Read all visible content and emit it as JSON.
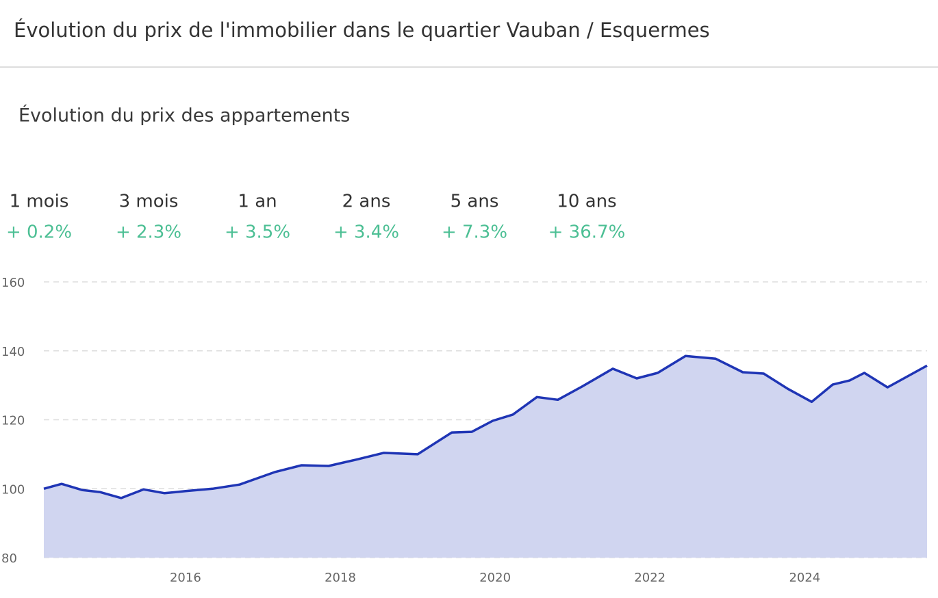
{
  "header": {
    "title": "Évolution du prix de l'immobilier dans le quartier Vauban / Esquermes"
  },
  "subtitle": "Évolution du prix des appartements",
  "stats": [
    {
      "label": "1 mois",
      "value": "+ 0.2%"
    },
    {
      "label": "3 mois",
      "value": "+ 2.3%"
    },
    {
      "label": "1 an",
      "value": "+ 3.5%"
    },
    {
      "label": "2 ans",
      "value": "+ 3.4%"
    },
    {
      "label": "5 ans",
      "value": "+ 7.3%"
    },
    {
      "label": "10 ans",
      "value": "+ 36.7%"
    }
  ],
  "chart_data": {
    "type": "area",
    "x": [
      2014.17,
      2014.4,
      2014.67,
      2014.9,
      2015.17,
      2015.46,
      2015.73,
      2016.0,
      2016.35,
      2016.7,
      2017.15,
      2017.5,
      2017.85,
      2018.2,
      2018.56,
      2019.0,
      2019.44,
      2019.7,
      2019.97,
      2020.23,
      2020.54,
      2020.81,
      2021.12,
      2021.52,
      2021.83,
      2022.1,
      2022.46,
      2022.85,
      2023.2,
      2023.47,
      2023.78,
      2024.09,
      2024.36,
      2024.58,
      2024.77,
      2025.07,
      2025.58
    ],
    "values": [
      100.0,
      101.4,
      99.6,
      99.0,
      97.3,
      99.8,
      98.7,
      99.3,
      100.0,
      101.2,
      104.8,
      106.8,
      106.6,
      108.4,
      110.4,
      110.0,
      116.3,
      116.5,
      119.7,
      121.5,
      126.6,
      125.8,
      129.6,
      134.8,
      132.0,
      133.6,
      138.5,
      137.7,
      133.8,
      133.4,
      129.0,
      125.2,
      130.2,
      131.4,
      133.6,
      129.4,
      135.7
    ],
    "color": "#1f35b5",
    "fill_color": "#d0d5f0",
    "xlim": [
      2014.17,
      2025.58
    ],
    "xticks": [
      2016,
      2018,
      2020,
      2022,
      2024
    ],
    "ylim": [
      80,
      160
    ],
    "yticks": [
      80,
      100,
      120,
      140,
      160
    ],
    "grid": true
  }
}
